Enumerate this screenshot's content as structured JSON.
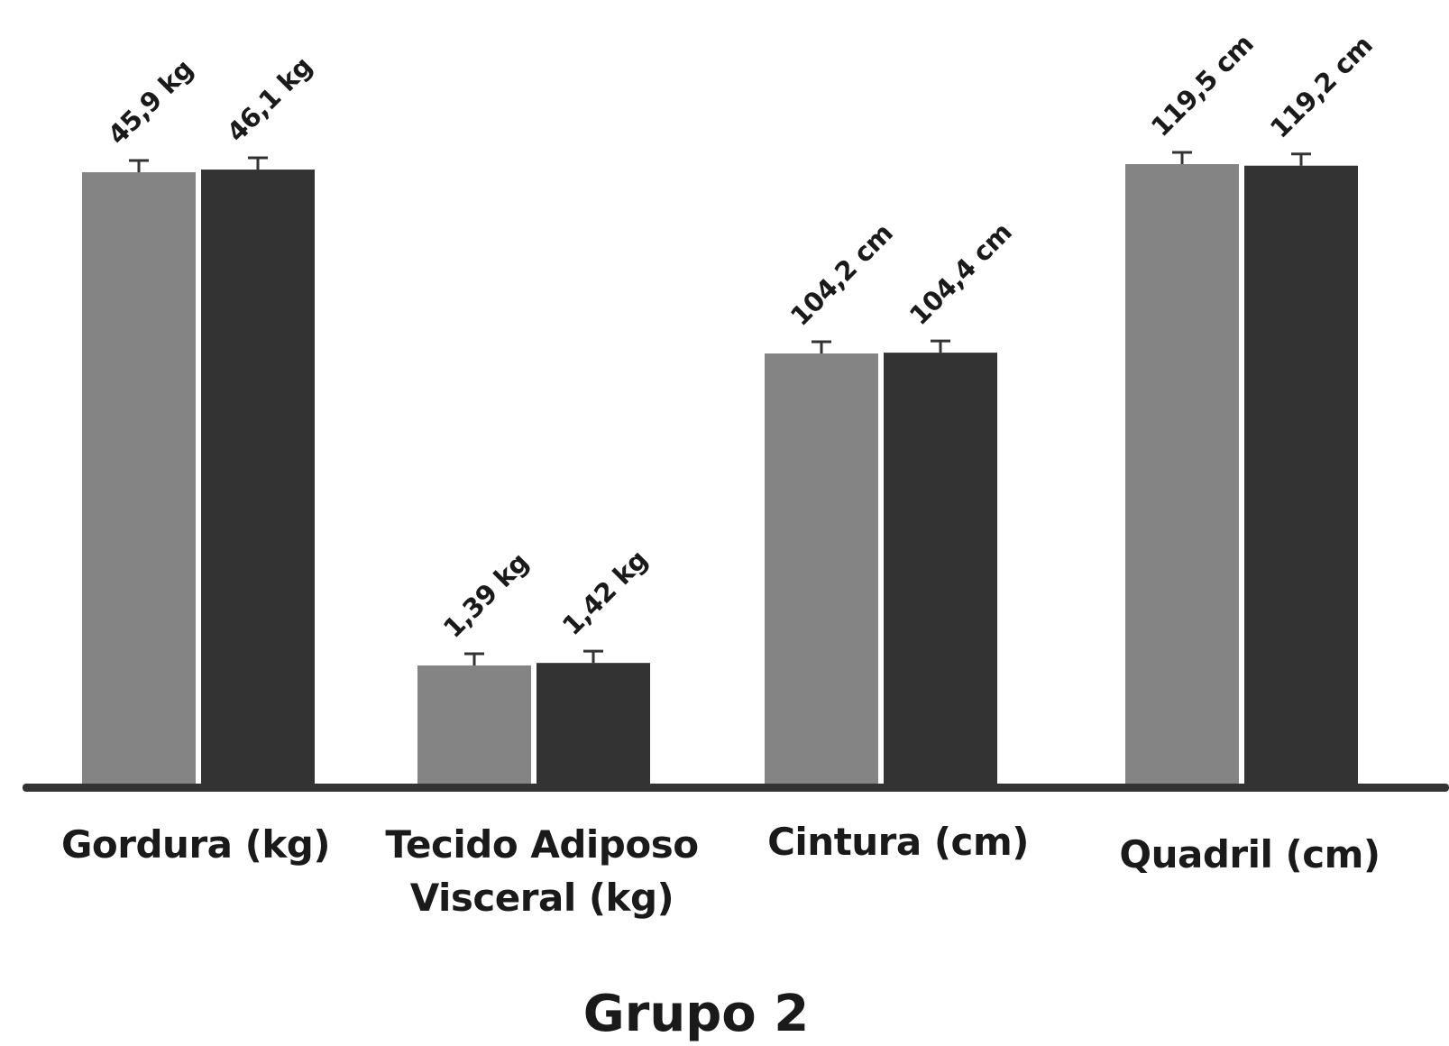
{
  "chart_data": {
    "type": "bar",
    "title": "Grupo 2",
    "categories": [
      "Gordura (kg)",
      "Tecido Adiposo Visceral (kg)",
      "Cintura (cm)",
      "Quadril (cm)"
    ],
    "series": [
      {
        "color": "#848484",
        "values": [
          45.9,
          1.39,
          104.2,
          119.5
        ],
        "value_labels": [
          "45,9 kg",
          "1,39 kg",
          "104,2 cm",
          "119,5 cm"
        ]
      },
      {
        "color": "#333333",
        "values": [
          46.1,
          1.42,
          104.4,
          119.2
        ],
        "value_labels": [
          "46,1 kg",
          "1,42 kg",
          "104,4 cm",
          "119,2 cm"
        ]
      }
    ],
    "error_bars": true,
    "y_axis_shown": false,
    "grid": false,
    "legend": "none"
  }
}
